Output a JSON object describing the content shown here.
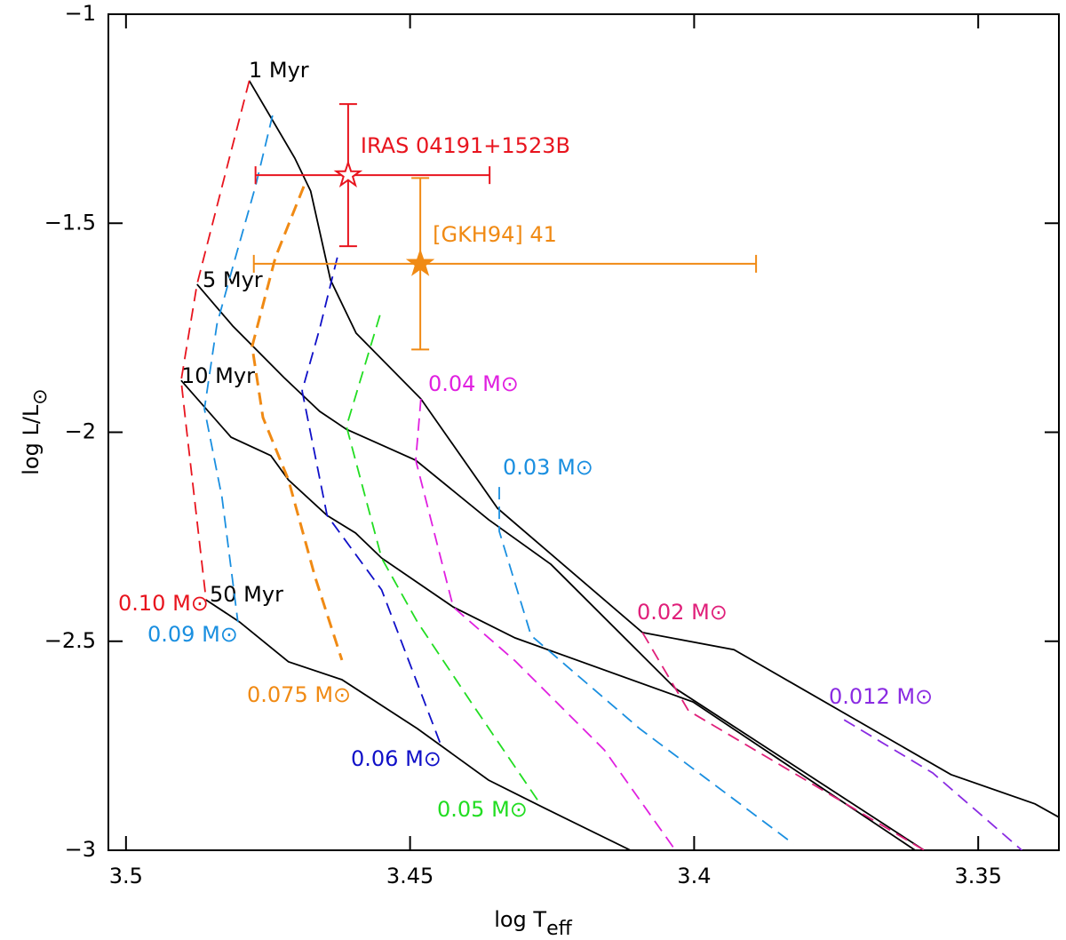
{
  "chart_data": {
    "type": "line",
    "xlabel": "log T",
    "xlabel_sub": "eff",
    "ylabel": "log L/L",
    "ylabel_sub": "⊙",
    "xlim": [
      3.5031,
      3.3358
    ],
    "ylim": [
      -3,
      -1
    ],
    "xticks": [
      3.5,
      3.45,
      3.4,
      3.35
    ],
    "yticks": [
      {
        "value": -1,
        "label": "−1"
      },
      {
        "value": -1.5,
        "label": "−1.5"
      },
      {
        "value": -2,
        "label": "−2"
      },
      {
        "value": -2.5,
        "label": "−2.5"
      },
      {
        "value": -3,
        "label": "−3"
      }
    ],
    "series": [
      {
        "name": "1 Myr",
        "color": "#000000",
        "style": "solid",
        "x": [
          3.4783,
          3.4703,
          3.4675,
          3.464,
          3.4595,
          3.4481,
          3.4346,
          3.4091,
          3.393,
          3.3548,
          3.34,
          3.3358
        ],
        "values": [
          -1.159,
          -1.344,
          -1.423,
          -1.636,
          -1.763,
          -1.92,
          -2.182,
          -2.479,
          -2.52,
          -2.819,
          -2.889,
          -2.921
        ]
      },
      {
        "name": "5 Myr",
        "color": "#000000",
        "style": "solid",
        "x": [
          3.4875,
          3.4812,
          3.4768,
          3.4722,
          3.4659,
          3.4612,
          3.449,
          3.4362,
          3.4252,
          3.4033,
          3.3595
        ],
        "values": [
          -1.646,
          -1.746,
          -1.806,
          -1.869,
          -1.95,
          -1.993,
          -2.067,
          -2.209,
          -2.316,
          -2.613,
          -3
        ]
      },
      {
        "name": "10 Myr",
        "color": "#000000",
        "style": "solid",
        "x": [
          3.4903,
          3.4815,
          3.4745,
          3.4714,
          3.4646,
          3.4596,
          3.455,
          3.4424,
          3.4315,
          3.4002,
          3.3611
        ],
        "values": [
          -1.876,
          -2.012,
          -2.056,
          -2.114,
          -2.199,
          -2.241,
          -2.301,
          -2.418,
          -2.492,
          -2.645,
          -3
        ]
      },
      {
        "name": "50 Myr",
        "color": "#000000",
        "style": "solid",
        "x": [
          3.4859,
          3.48,
          3.4714,
          3.462,
          3.4487,
          3.4362,
          3.4268,
          3.4112
        ],
        "values": [
          -2.401,
          -2.454,
          -2.549,
          -2.592,
          -2.709,
          -2.832,
          -2.896,
          -3
        ]
      },
      {
        "name": "0.10 M⊙",
        "color": "#e8141e",
        "style": "dashed",
        "x": [
          3.4783,
          3.4837,
          3.4875,
          3.4903,
          3.4894,
          3.4859
        ],
        "values": [
          -1.159,
          -1.444,
          -1.646,
          -1.876,
          -1.986,
          -2.401
        ]
      },
      {
        "name": "0.09 M⊙",
        "color": "#1a8fe0",
        "style": "dashed",
        "x": [
          3.4742,
          3.4772,
          3.4812,
          3.484,
          3.4862,
          3.4831,
          3.4803
        ],
        "values": [
          -1.242,
          -1.412,
          -1.604,
          -1.742,
          -1.944,
          -2.156,
          -2.454
        ]
      },
      {
        "name": "0.075 M⊙",
        "color": "#f08a14",
        "style": "dashed",
        "x": [
          3.4687,
          3.4737,
          3.4778,
          3.4759,
          3.4714,
          3.4667,
          3.462
        ],
        "values": [
          -1.412,
          -1.582,
          -1.795,
          -1.965,
          -2.114,
          -2.347,
          -2.545
        ]
      },
      {
        "name": "0.06 M⊙",
        "color": "#1010c8",
        "style": "dashed",
        "x": [
          3.4628,
          3.4659,
          3.469,
          3.4646,
          3.455,
          3.4445
        ],
        "values": [
          -1.582,
          -1.752,
          -1.901,
          -2.199,
          -2.377,
          -2.751
        ]
      },
      {
        "name": "0.05 M⊙",
        "color": "#22dd22",
        "style": "dashed",
        "x": [
          3.4553,
          3.4612,
          3.455,
          3.4487,
          3.4393,
          3.4271
        ],
        "values": [
          -1.72,
          -1.986,
          -2.301,
          -2.454,
          -2.645,
          -2.889
        ]
      },
      {
        "name": "0.04 M⊙",
        "color": "#e020e0",
        "style": "dashed",
        "x": [
          3.4481,
          3.449,
          3.4424,
          3.4315,
          3.4158,
          3.4033
        ],
        "values": [
          -1.92,
          -2.067,
          -2.418,
          -2.547,
          -2.76,
          -3
        ]
      },
      {
        "name": "0.03 M⊙",
        "color": "#1a8fe0",
        "style": "dashed",
        "x": [
          3.4343,
          3.4343,
          3.4287,
          3.4096,
          3.3825
        ],
        "values": [
          -2.131,
          -2.237,
          -2.486,
          -2.709,
          -2.985
        ]
      },
      {
        "name": "0.02 M⊙",
        "color": "#e0207a",
        "style": "dashed",
        "x": [
          3.4091,
          3.401,
          3.3595
        ],
        "values": [
          -2.479,
          -2.666,
          -3
        ]
      },
      {
        "name": "0.012 M⊙",
        "color": "#8a2be2",
        "style": "dashed",
        "x": [
          3.3736,
          3.358,
          3.3423
        ],
        "values": [
          -2.688,
          -2.815,
          -3
        ]
      }
    ],
    "points": [
      {
        "name": "IRAS 04191+1523B",
        "color": "#e8141e",
        "filled": false,
        "x": 3.4609,
        "y": -1.385,
        "xerr": [
          0.0249,
          0.0163
        ],
        "yerr": 0.17
      },
      {
        "name": "[GKH94] 41",
        "color": "#f08a14",
        "filled": true,
        "x": 3.4482,
        "y": -1.597,
        "xerr": [
          0.0591,
          0.0293
        ],
        "yerr": 0.205
      }
    ]
  }
}
